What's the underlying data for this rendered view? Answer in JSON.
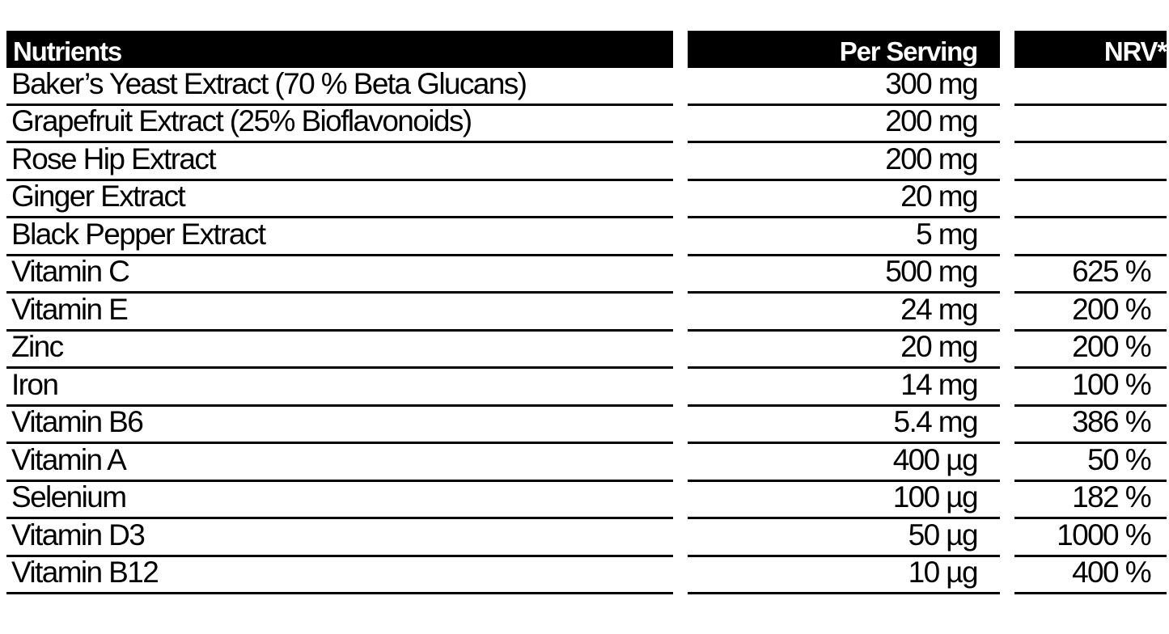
{
  "header": {
    "nutrients": "Nutrients",
    "per_serving": "Per Serving",
    "nrv": "NRV*"
  },
  "rows": [
    {
      "name": "Baker’s Yeast Extract (70 % Beta Glucans)",
      "per_serving": "300 mg",
      "nrv": ""
    },
    {
      "name": "Grapefruit Extract (25% Bioflavonoids)",
      "per_serving": "200 mg",
      "nrv": ""
    },
    {
      "name": "Rose Hip Extract",
      "per_serving": "200 mg",
      "nrv": ""
    },
    {
      "name": "Ginger Extract",
      "per_serving": "20 mg",
      "nrv": ""
    },
    {
      "name": "Black Pepper Extract",
      "per_serving": "5 mg",
      "nrv": ""
    },
    {
      "name": "Vitamin C",
      "per_serving": "500 mg",
      "nrv": "625 %"
    },
    {
      "name": "Vitamin E",
      "per_serving": "24 mg",
      "nrv": "200 %"
    },
    {
      "name": "Zinc",
      "per_serving": "20 mg",
      "nrv": "200 %"
    },
    {
      "name": "Iron",
      "per_serving": "14 mg",
      "nrv": "100 %"
    },
    {
      "name": "Vitamin B6",
      "per_serving": "5.4 mg",
      "nrv": "386 %"
    },
    {
      "name": "Vitamin A",
      "per_serving": "400 µg",
      "nrv": "50 %"
    },
    {
      "name": "Selenium",
      "per_serving": "100 µg",
      "nrv": "182 %"
    },
    {
      "name": "Vitamin D3",
      "per_serving": "50 µg",
      "nrv": "1000 %"
    },
    {
      "name": "Vitamin B12",
      "per_serving": "10 µg",
      "nrv": "400 %"
    }
  ]
}
